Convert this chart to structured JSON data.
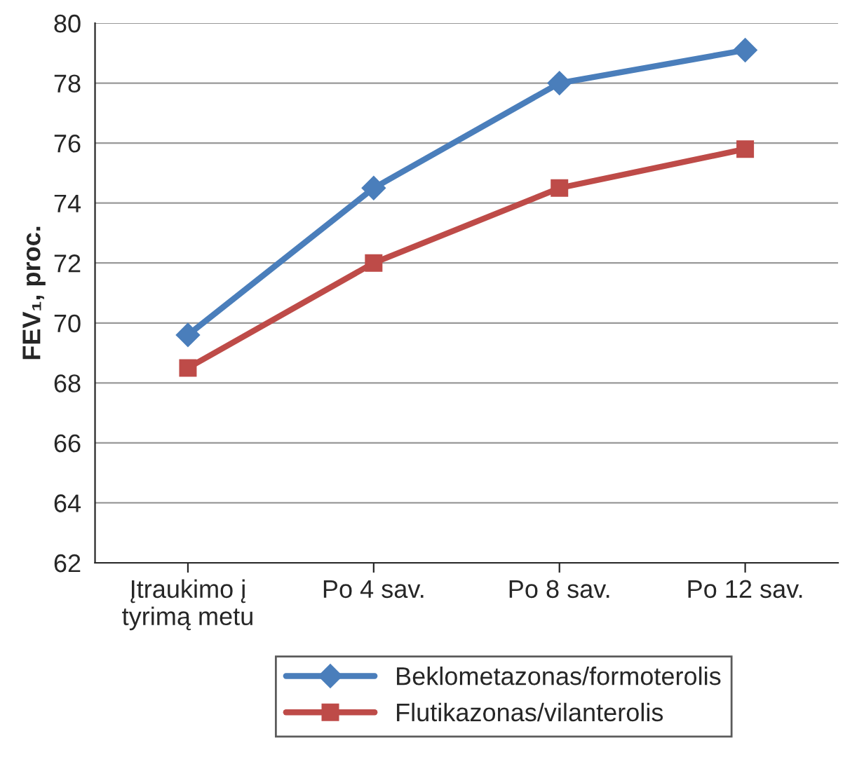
{
  "chart_data": {
    "type": "line",
    "ylabel": "FEV₁, proc.",
    "categories": [
      "Įtraukimo į\ntyrimą metu",
      "Po 4 sav.",
      "Po 8 sav.",
      "Po 12 sav."
    ],
    "series": [
      {
        "name": "Beklometazonas/formoterolis",
        "color": "#4a7ebb",
        "values": [
          69.6,
          74.5,
          78.0,
          79.1
        ],
        "marker": "diamond"
      },
      {
        "name": "Flutikazonas/vilanterolis",
        "color": "#be4b48",
        "values": [
          68.5,
          72.0,
          74.5,
          75.8
        ],
        "marker": "square"
      }
    ],
    "ylim": [
      62,
      80
    ],
    "yticks": [
      62,
      64,
      66,
      68,
      70,
      72,
      74,
      76,
      78,
      80
    ],
    "grid": "y",
    "legend": "bottom",
    "line_style": "solid"
  }
}
